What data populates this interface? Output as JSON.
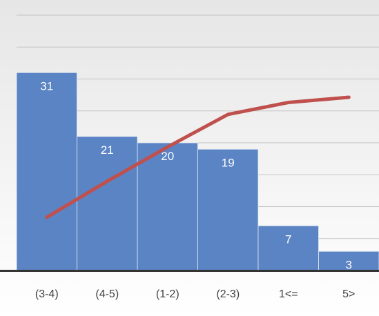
{
  "chart_data": {
    "type": "bar",
    "title": "",
    "xlabel": "",
    "ylabel": "",
    "categories": [
      "(3-4)",
      "(4-5)",
      "(1-2)",
      "(2-3)",
      "1<=",
      "5>"
    ],
    "series": [
      {
        "type": "bar",
        "values": [
          31,
          21,
          20,
          19,
          7,
          3
        ]
      },
      {
        "type": "line",
        "values": [
          30.7,
          51.5,
          71.3,
          90.1,
          97.0,
          100.0
        ]
      }
    ],
    "ylim": [
      0,
      40
    ],
    "y2lim": [
      0,
      130
    ],
    "grid": true,
    "legend": "none",
    "colors": {
      "bar": "#5b84c4",
      "bar_edge": "#e8edf4",
      "line": "#c0504d",
      "label": "#ffffff",
      "tick": "#404040",
      "grid": "#c3c3c3",
      "axis": "#333333",
      "bg_top": "#e6e6e6",
      "bg_bottom": "#ffffff"
    }
  }
}
